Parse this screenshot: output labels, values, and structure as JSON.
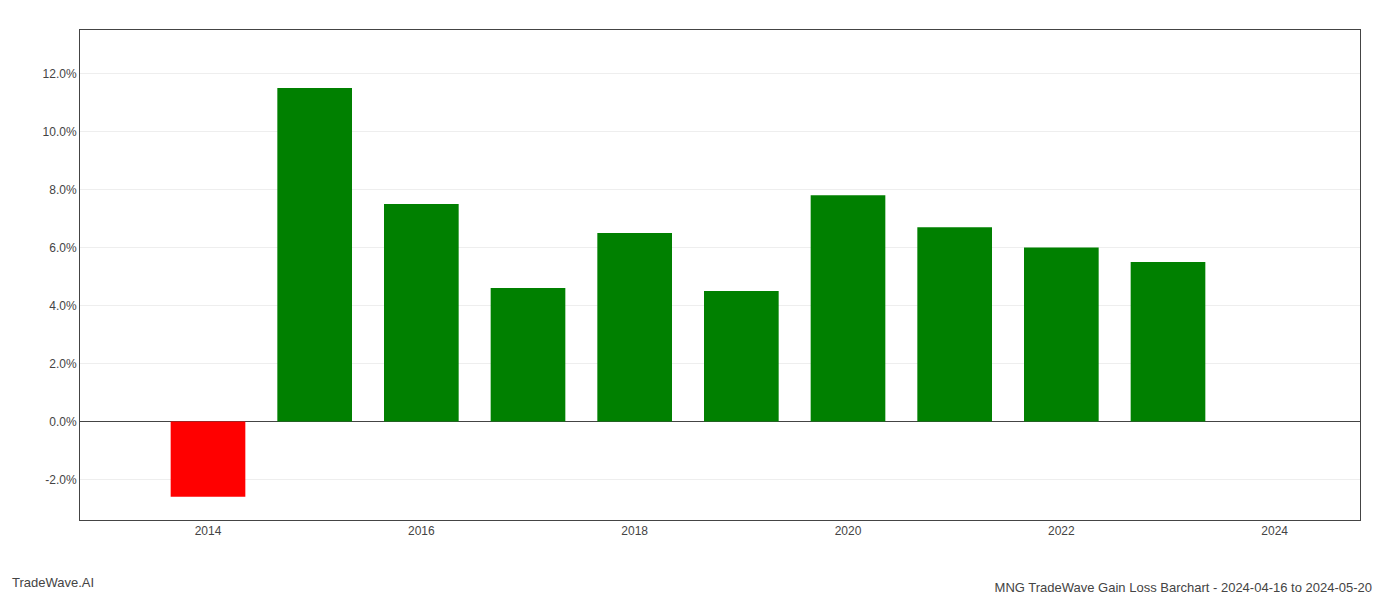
{
  "chart_data": {
    "type": "bar",
    "title": "MNG TradeWave Gain Loss Barchart - 2024-04-16 to 2024-05-20",
    "annotations": [
      "TradeWave.AI"
    ],
    "x": [
      2014,
      2015,
      2016,
      2017,
      2018,
      2019,
      2020,
      2021,
      2022,
      2023
    ],
    "values": [
      -0.026,
      0.115,
      0.075,
      0.046,
      0.065,
      0.045,
      0.078,
      0.067,
      0.06,
      0.055
    ],
    "colors": [
      "#ff0000",
      "#008000",
      "#008000",
      "#008000",
      "#008000",
      "#008000",
      "#008000",
      "#008000",
      "#008000",
      "#008000"
    ],
    "xlim": [
      2012.8,
      2024.8
    ],
    "xticks": [
      2014,
      2016,
      2018,
      2020,
      2022,
      2024
    ],
    "ylim": [
      -0.034,
      0.135
    ],
    "yticks": [
      {
        "value": -0.02,
        "label": "-2.0%"
      },
      {
        "value": 0.0,
        "label": "0.0%"
      },
      {
        "value": 0.02,
        "label": "2.0%"
      },
      {
        "value": 0.04,
        "label": "4.0%"
      },
      {
        "value": 0.06,
        "label": "6.0%"
      },
      {
        "value": 0.08,
        "label": "8.0%"
      },
      {
        "value": 0.1,
        "label": "10.0%"
      },
      {
        "value": 0.12,
        "label": "12.0%"
      }
    ],
    "grid": true
  }
}
